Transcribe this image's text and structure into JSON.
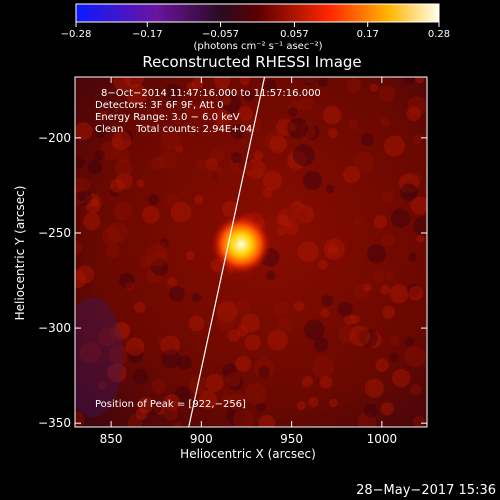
{
  "colorbar": {
    "tick_labels": [
      "−0.28",
      "−0.17",
      "−0.057",
      "0.057",
      "0.17",
      "0.28"
    ],
    "tick_values": [
      -0.28,
      -0.17,
      -0.057,
      0.057,
      0.17,
      0.28
    ],
    "range": [
      -0.28,
      0.28
    ],
    "units_label": "(photons cm⁻² s⁻¹ asec⁻²)"
  },
  "image": {
    "title": "Reconstructed RHESSI Image",
    "info_lines": [
      "8−Oct−2014 11:47:16.000 to 11:57:16.000",
      "Detectors: 3F 6F 9F, Att 0",
      "Energy Range: 3.0 − 6.0 keV",
      "Clean    Total counts: 2.94E+04"
    ],
    "peak_label": "Position of Peak = [922,−256]"
  },
  "footer": {
    "timestamp": "28−May−2017 15:36"
  },
  "chart_data": {
    "type": "heatmap",
    "title": "Reconstructed RHESSI Image",
    "xlabel": "Heliocentric X (arcsec)",
    "ylabel": "Heliocentric Y (arcsec)",
    "xlim": [
      830,
      1025
    ],
    "ylim": [
      -352,
      -168
    ],
    "x_ticks": [
      850,
      900,
      950,
      1000
    ],
    "x_tick_labels": [
      "850",
      "900",
      "950",
      "1000"
    ],
    "y_ticks": [
      -200,
      -250,
      -300,
      -350
    ],
    "y_tick_labels": [
      "−200",
      "−250",
      "−300",
      "−350"
    ],
    "peak": {
      "x": 922,
      "y": -256
    },
    "limb_line": [
      [
        893,
        -352
      ],
      [
        935,
        -168
      ]
    ],
    "colormap": [
      "#0b1aff",
      "#3b0a8a",
      "#1a0a2a",
      "#7a0000",
      "#ff2000",
      "#ffd000",
      "#ffffff"
    ]
  }
}
